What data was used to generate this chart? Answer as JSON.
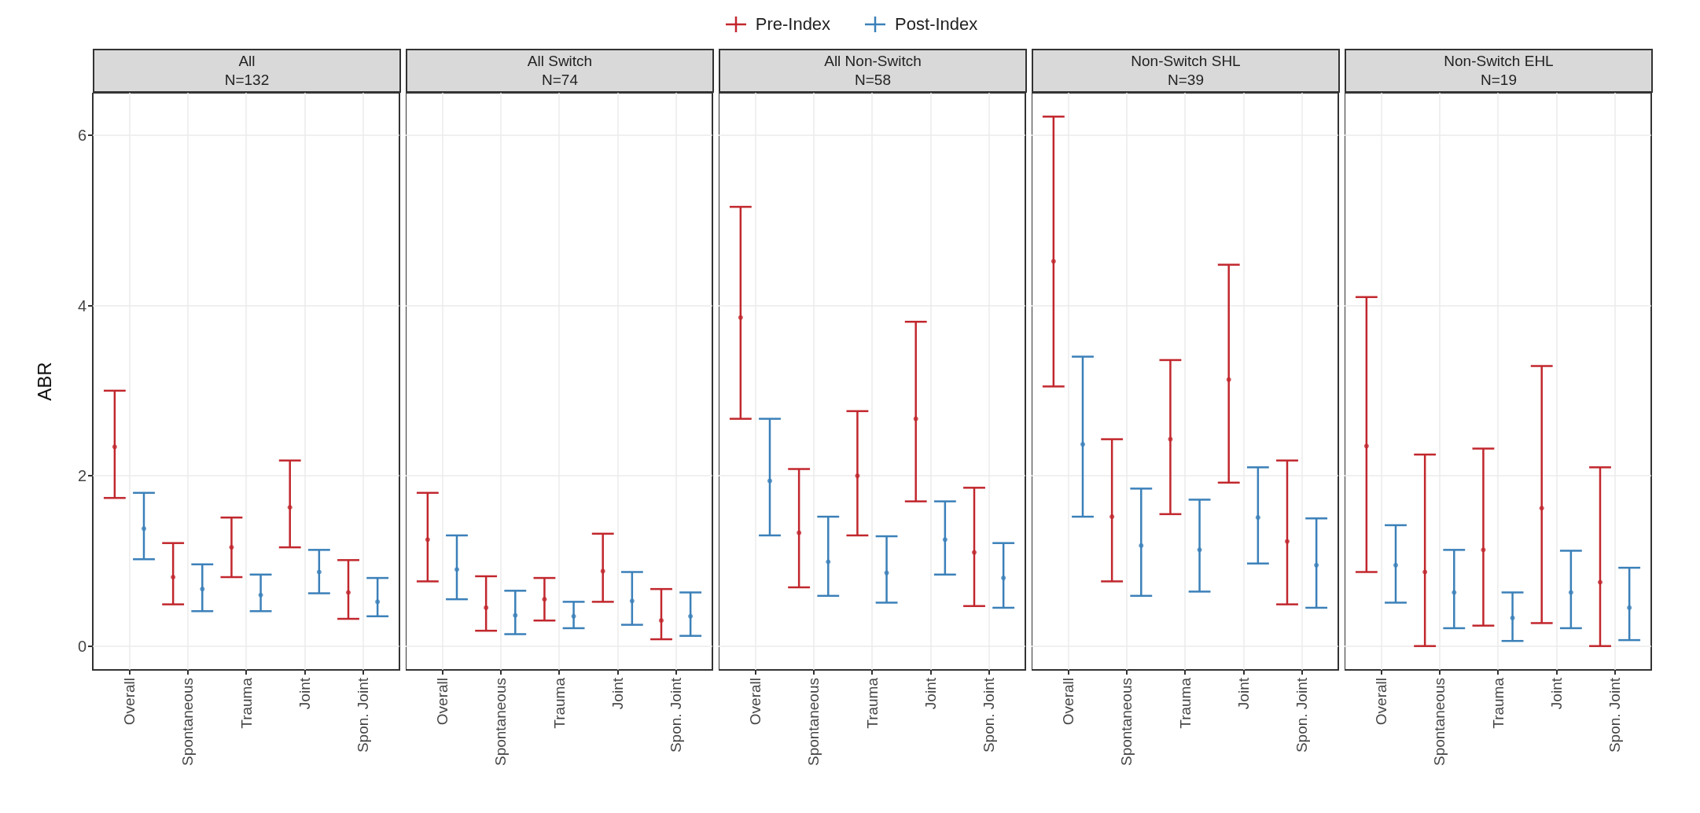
{
  "chart_data": [
    {
      "type": "scatter",
      "title": "All\nN=132",
      "ylabel": "ABR",
      "legend": "top",
      "grid": true,
      "marker": "circle",
      "ylim": [
        -0.28,
        6.5
      ],
      "yticks": [
        0,
        2,
        4,
        6
      ],
      "categories": [
        null,
        null,
        "Overall",
        null,
        null,
        null,
        "Spontaneous",
        null,
        null,
        null,
        "Trauma",
        null,
        null,
        null,
        "Joint",
        null,
        null,
        null,
        "Spon. Joint",
        null,
        null
      ],
      "series": [
        {
          "name": "Pre-Index",
          "color": "#c1272d",
          "values": [
            null,
            2.34,
            null,
            null,
            null,
            0.81,
            null,
            null,
            null,
            1.16,
            null,
            null,
            null,
            1.63,
            null,
            null,
            null,
            0.63,
            null,
            null,
            null
          ],
          "errors": [
            null,
            [
              1.74,
              3.0
            ],
            null,
            null,
            null,
            [
              0.49,
              1.21
            ],
            null,
            null,
            null,
            [
              0.81,
              1.51
            ],
            null,
            null,
            null,
            [
              1.16,
              2.18
            ],
            null,
            null,
            null,
            [
              0.32,
              1.01
            ],
            null,
            null,
            null
          ]
        },
        {
          "name": "Post-Index",
          "color": "#3b80b9",
          "values": [
            null,
            null,
            null,
            1.38,
            null,
            null,
            null,
            0.67,
            null,
            null,
            null,
            0.6,
            null,
            null,
            null,
            0.87,
            null,
            null,
            null,
            0.52,
            null
          ],
          "errors": [
            null,
            null,
            null,
            [
              1.02,
              1.8
            ],
            null,
            null,
            null,
            [
              0.41,
              0.96
            ],
            null,
            null,
            null,
            [
              0.41,
              0.84
            ],
            null,
            null,
            null,
            [
              0.62,
              1.13
            ],
            null,
            null,
            null,
            [
              0.35,
              0.8
            ],
            null
          ]
        }
      ]
    },
    {
      "type": "scatter",
      "title": "All Switch\nN=74",
      "grid": true,
      "marker": "circle",
      "tick_labels": "x",
      "ylim": [
        -0.28,
        6.5
      ],
      "yticks": [
        0,
        2,
        4,
        6
      ],
      "categories": [
        null,
        null,
        "Overall",
        null,
        null,
        null,
        "Spontaneous",
        null,
        null,
        null,
        "Trauma",
        null,
        null,
        null,
        "Joint",
        null,
        null,
        null,
        "Spon. Joint",
        null,
        null
      ],
      "series": [
        {
          "color": "#c1272d",
          "values": [
            null,
            1.25,
            null,
            null,
            null,
            0.45,
            null,
            null,
            null,
            0.55,
            null,
            null,
            null,
            0.88,
            null,
            null,
            null,
            0.3,
            null,
            null,
            null
          ],
          "errors": [
            null,
            [
              0.76,
              1.8
            ],
            null,
            null,
            null,
            [
              0.18,
              0.82
            ],
            null,
            null,
            null,
            [
              0.3,
              0.8
            ],
            null,
            null,
            null,
            [
              0.52,
              1.32
            ],
            null,
            null,
            null,
            [
              0.08,
              0.67
            ],
            null,
            null,
            null
          ]
        },
        {
          "color": "#3b80b9",
          "values": [
            null,
            null,
            null,
            0.9,
            null,
            null,
            null,
            0.36,
            null,
            null,
            null,
            0.35,
            null,
            null,
            null,
            0.53,
            null,
            null,
            null,
            0.35,
            null
          ],
          "errors": [
            null,
            null,
            null,
            [
              0.55,
              1.3
            ],
            null,
            null,
            null,
            [
              0.14,
              0.65
            ],
            null,
            null,
            null,
            [
              0.21,
              0.52
            ],
            null,
            null,
            null,
            [
              0.25,
              0.87
            ],
            null,
            null,
            null,
            [
              0.12,
              0.63
            ],
            null
          ]
        }
      ]
    },
    {
      "type": "scatter",
      "title": "All Non-Switch\nN=58",
      "grid": true,
      "marker": "circle",
      "tick_labels": "x",
      "ylim": [
        -0.28,
        6.5
      ],
      "yticks": [
        0,
        2,
        4,
        6
      ],
      "categories": [
        null,
        null,
        "Overall",
        null,
        null,
        null,
        "Spontaneous",
        null,
        null,
        null,
        "Trauma",
        null,
        null,
        null,
        "Joint",
        null,
        null,
        null,
        "Spon. Joint",
        null,
        null
      ],
      "series": [
        {
          "color": "#c1272d",
          "values": [
            null,
            3.86,
            null,
            null,
            null,
            1.33,
            null,
            null,
            null,
            2.0,
            null,
            null,
            null,
            2.67,
            null,
            null,
            null,
            1.1,
            null,
            null,
            null
          ],
          "errors": [
            null,
            [
              2.67,
              5.16
            ],
            null,
            null,
            null,
            [
              0.69,
              2.08
            ],
            null,
            null,
            null,
            [
              1.3,
              2.76
            ],
            null,
            null,
            null,
            [
              1.7,
              3.81
            ],
            null,
            null,
            null,
            [
              0.47,
              1.86
            ],
            null,
            null,
            null
          ]
        },
        {
          "color": "#3b80b9",
          "values": [
            null,
            null,
            null,
            1.94,
            null,
            null,
            null,
            0.99,
            null,
            null,
            null,
            0.86,
            null,
            null,
            null,
            1.25,
            null,
            null,
            null,
            0.8,
            null
          ],
          "errors": [
            null,
            null,
            null,
            [
              1.3,
              2.67
            ],
            null,
            null,
            null,
            [
              0.59,
              1.52
            ],
            null,
            null,
            null,
            [
              0.51,
              1.29
            ],
            null,
            null,
            null,
            [
              0.84,
              1.7
            ],
            null,
            null,
            null,
            [
              0.45,
              1.21
            ],
            null
          ]
        }
      ]
    },
    {
      "type": "scatter",
      "title": "Non-Switch SHL\nN=39",
      "grid": true,
      "marker": "circle",
      "tick_labels": "x",
      "ylim": [
        -0.28,
        6.5
      ],
      "yticks": [
        0,
        2,
        4,
        6
      ],
      "categories": [
        null,
        null,
        "Overall",
        null,
        null,
        null,
        "Spontaneous",
        null,
        null,
        null,
        "Trauma",
        null,
        null,
        null,
        "Joint",
        null,
        null,
        null,
        "Spon. Joint",
        null,
        null
      ],
      "series": [
        {
          "color": "#c1272d",
          "values": [
            null,
            4.52,
            null,
            null,
            null,
            1.52,
            null,
            null,
            null,
            2.43,
            null,
            null,
            null,
            3.13,
            null,
            null,
            null,
            1.23,
            null,
            null,
            null
          ],
          "errors": [
            null,
            [
              3.05,
              6.22
            ],
            null,
            null,
            null,
            [
              0.76,
              2.43
            ],
            null,
            null,
            null,
            [
              1.55,
              3.36
            ],
            null,
            null,
            null,
            [
              1.92,
              4.48
            ],
            null,
            null,
            null,
            [
              0.49,
              2.18
            ],
            null,
            null,
            null
          ]
        },
        {
          "color": "#3b80b9",
          "values": [
            null,
            null,
            null,
            2.37,
            null,
            null,
            null,
            1.18,
            null,
            null,
            null,
            1.13,
            null,
            null,
            null,
            1.51,
            null,
            null,
            null,
            0.95,
            null
          ],
          "errors": [
            null,
            null,
            null,
            [
              1.52,
              3.4
            ],
            null,
            null,
            null,
            [
              0.59,
              1.85
            ],
            null,
            null,
            null,
            [
              0.64,
              1.72
            ],
            null,
            null,
            null,
            [
              0.97,
              2.1
            ],
            null,
            null,
            null,
            [
              0.45,
              1.5
            ],
            null
          ]
        }
      ]
    },
    {
      "type": "scatter",
      "title": "Non-Switch EHL\nN=19",
      "grid": true,
      "marker": "circle",
      "tick_labels": "x",
      "ylim": [
        -0.28,
        6.5
      ],
      "yticks": [
        0,
        2,
        4,
        6
      ],
      "categories": [
        null,
        null,
        "Overall",
        null,
        null,
        null,
        "Spontaneous",
        null,
        null,
        null,
        "Trauma",
        null,
        null,
        null,
        "Joint",
        null,
        null,
        null,
        "Spon. Joint",
        null,
        null
      ],
      "series": [
        {
          "color": "#c1272d",
          "values": [
            null,
            2.35,
            null,
            null,
            null,
            0.87,
            null,
            null,
            null,
            1.13,
            null,
            null,
            null,
            1.62,
            null,
            null,
            null,
            0.75,
            null,
            null,
            null
          ],
          "errors": [
            null,
            [
              0.87,
              4.1
            ],
            null,
            null,
            null,
            [
              0.0,
              2.25
            ],
            null,
            null,
            null,
            [
              0.24,
              2.32
            ],
            null,
            null,
            null,
            [
              0.27,
              3.29
            ],
            null,
            null,
            null,
            [
              0.0,
              2.1
            ],
            null,
            null,
            null
          ]
        },
        {
          "color": "#3b80b9",
          "values": [
            null,
            null,
            null,
            0.95,
            null,
            null,
            null,
            0.63,
            null,
            null,
            null,
            0.33,
            null,
            null,
            null,
            0.63,
            null,
            null,
            null,
            0.45,
            null
          ],
          "errors": [
            null,
            null,
            null,
            [
              0.51,
              1.42
            ],
            null,
            null,
            null,
            [
              0.21,
              1.13
            ],
            null,
            null,
            null,
            [
              0.06,
              0.63
            ],
            null,
            null,
            null,
            [
              0.21,
              1.12
            ],
            null,
            null,
            null,
            [
              0.07,
              0.92
            ],
            null
          ]
        }
      ]
    }
  ]
}
